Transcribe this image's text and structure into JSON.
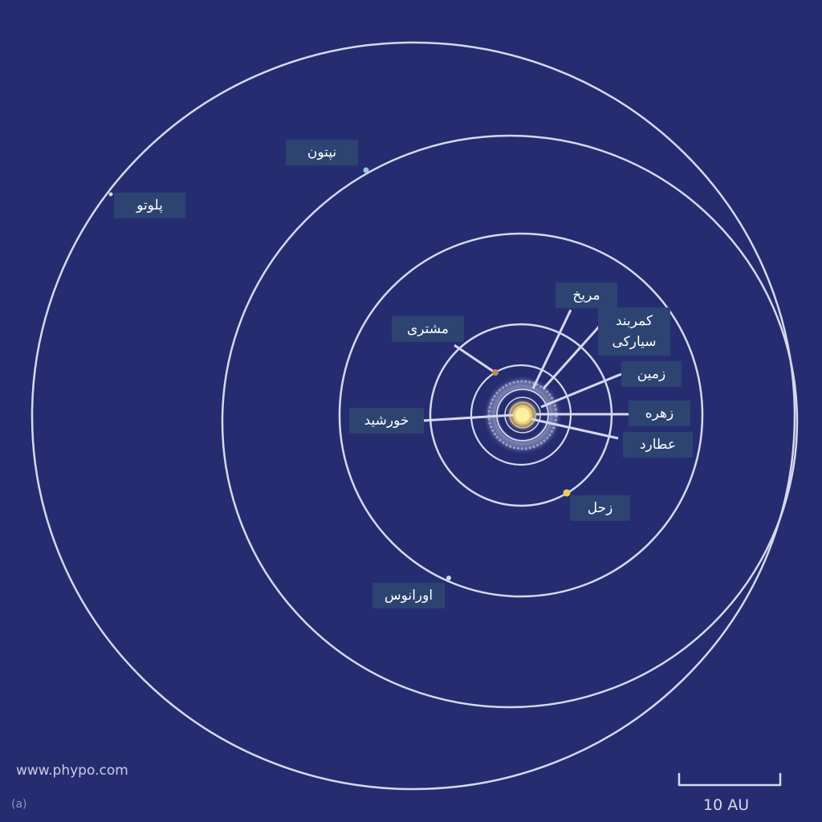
{
  "labels": {
    "pluto": "پلوتو",
    "neptune": "نپتون",
    "mars": "مریخ",
    "asteroid_belt": "کمربند\nسیارکی",
    "jupiter": "مشتری",
    "earth": "زمین",
    "sun": "خورشید",
    "venus": "زهره",
    "mercury": "عطارد",
    "saturn": "زحل",
    "uranus": "اورانوس"
  },
  "scale_bar": {
    "label": "10 AU"
  },
  "watermark": "www.phypo.com",
  "figure_label": "(a)",
  "colors": {
    "background": "#252d70",
    "orbit": "#d6d8ee",
    "label_box": "#2d4372",
    "sun": "#fff0a0"
  }
}
